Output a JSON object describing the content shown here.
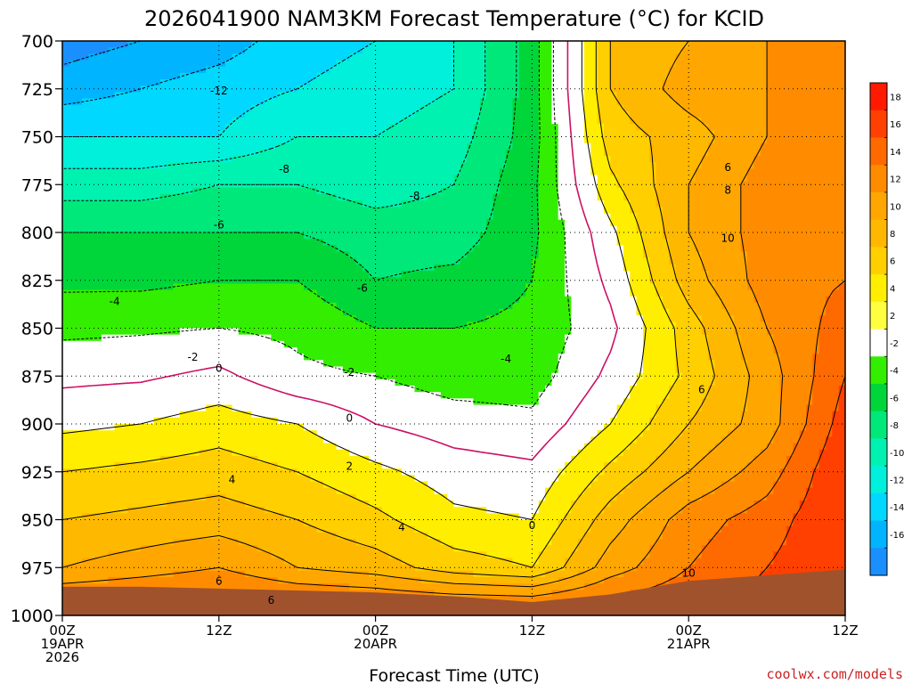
{
  "chart_data": {
    "type": "heatmap",
    "title": "2026041900 NAM3KM Forecast Temperature (°C) for KCID",
    "xlabel": "Forecast Time (UTC)",
    "ylabel": "",
    "x_hours": [
      0,
      6,
      12,
      18,
      24,
      30,
      36,
      42,
      48,
      54,
      60
    ],
    "x_ticks": [
      {
        "hour": 0,
        "lines": [
          "00Z",
          "19APR",
          "2026"
        ]
      },
      {
        "hour": 12,
        "lines": [
          "12Z"
        ]
      },
      {
        "hour": 24,
        "lines": [
          "00Z",
          "20APR"
        ]
      },
      {
        "hour": 36,
        "lines": [
          "12Z"
        ]
      },
      {
        "hour": 48,
        "lines": [
          "00Z",
          "21APR"
        ]
      },
      {
        "hour": 60,
        "lines": [
          "12Z"
        ]
      }
    ],
    "y_levels_hpa": [
      700,
      725,
      750,
      775,
      800,
      825,
      850,
      875,
      900,
      925,
      950,
      975,
      1000
    ],
    "y_tick_labels": [
      "700",
      "725",
      "750",
      "775",
      "800",
      "825",
      "850",
      "875",
      "900",
      "925",
      "950",
      "975",
      "1000"
    ],
    "ylim": [
      1000,
      700
    ],
    "xlim": [
      0,
      60
    ],
    "grid": true,
    "surface_pressure_hpa": [
      985,
      985,
      986,
      987,
      988,
      990,
      993,
      989,
      982,
      979,
      976
    ],
    "temperature_c": [
      [
        -17,
        -15,
        -12,
        -9,
        -6,
        -4.5,
        -2.5,
        -0.5,
        1.5,
        4,
        6,
        8,
        14
      ],
      [
        -16,
        -14,
        -12,
        -9,
        -6,
        -4.5,
        -2.3,
        -0.3,
        2,
        4.5,
        6.5,
        9,
        14
      ],
      [
        -15,
        -13,
        -12,
        -8,
        -6,
        -4,
        -2,
        0.5,
        3,
        5,
        7,
        10,
        14
      ],
      [
        -13,
        -12,
        -10,
        -8,
        -6,
        -4,
        -2.5,
        -1.5,
        2,
        4,
        6,
        8,
        14
      ],
      [
        -12,
        -11,
        -10,
        -9,
        -7,
        -6,
        -4,
        -2,
        0,
        2.5,
        4.5,
        7,
        14
      ],
      [
        -10,
        -10,
        -9,
        -8,
        -7,
        -5.5,
        -4,
        -3,
        -1,
        1,
        2.5,
        5,
        14
      ],
      [
        -5,
        -5,
        -5,
        -4.5,
        -4.5,
        -4,
        -3.5,
        -3,
        -1.5,
        0.5,
        2,
        4,
        14
      ],
      [
        6,
        6,
        5,
        3.5,
        1.5,
        0.5,
        -0.5,
        0.5,
        2,
        4.5,
        7,
        9,
        14
      ],
      [
        8,
        9,
        7,
        8,
        8,
        7,
        5,
        4.5,
        6,
        8,
        11,
        12,
        14
      ],
      [
        10,
        10,
        10,
        11,
        11,
        11,
        10,
        9,
        9,
        11,
        13,
        14,
        15
      ],
      [
        11,
        11,
        12,
        12,
        12,
        12,
        13,
        14,
        15,
        16,
        16,
        16,
        16
      ]
    ],
    "contour_levels": [
      -16,
      -14,
      -12,
      -10,
      -8,
      -6,
      -4,
      -2,
      0,
      2,
      4,
      6,
      8,
      10,
      12,
      14,
      16
    ],
    "contour_labels": [
      {
        "text": "-12",
        "hour": 12,
        "p": 726
      },
      {
        "text": "-8",
        "hour": 17,
        "p": 767
      },
      {
        "text": "-8",
        "hour": 27,
        "p": 781
      },
      {
        "text": "-6",
        "hour": 12,
        "p": 796
      },
      {
        "text": "-6",
        "hour": 23,
        "p": 829
      },
      {
        "text": "-4",
        "hour": 4,
        "p": 836
      },
      {
        "text": "-4",
        "hour": 34,
        "p": 866
      },
      {
        "text": "-2",
        "hour": 10,
        "p": 865
      },
      {
        "text": "-2",
        "hour": 22,
        "p": 873
      },
      {
        "text": "0",
        "hour": 12,
        "p": 871
      },
      {
        "text": "0",
        "hour": 22,
        "p": 897
      },
      {
        "text": "0",
        "hour": 36,
        "p": 953
      },
      {
        "text": "2",
        "hour": 22,
        "p": 922
      },
      {
        "text": "4",
        "hour": 13,
        "p": 929
      },
      {
        "text": "4",
        "hour": 26,
        "p": 954
      },
      {
        "text": "6",
        "hour": 12,
        "p": 982
      },
      {
        "text": "6",
        "hour": 16,
        "p": 992
      },
      {
        "text": "6",
        "hour": 49,
        "p": 882
      },
      {
        "text": "6",
        "hour": 51,
        "p": 766
      },
      {
        "text": "8",
        "hour": 51,
        "p": 778
      },
      {
        "text": "10",
        "hour": 51,
        "p": 803
      },
      {
        "text": "10",
        "hour": 48,
        "p": 978
      }
    ],
    "colorbar": {
      "ticks": [
        "18",
        "16",
        "14",
        "12",
        "10",
        "8",
        "6",
        "4",
        "2",
        "-2",
        "-4",
        "-6",
        "-8",
        "-10",
        "-12",
        "-14",
        "-16"
      ],
      "colors": [
        "#ff1a00",
        "#ff4000",
        "#ff6a00",
        "#ff8c00",
        "#ffa600",
        "#ffb800",
        "#ffcf00",
        "#ffee00",
        "#ffff40",
        "#ffffff",
        "#33ee00",
        "#00d63a",
        "#00e87a",
        "#00f2b0",
        "#00f0dc",
        "#00d8ff",
        "#00b4ff",
        "#1a90ff"
      ]
    },
    "colors": {
      "terrain": "#a0522d",
      "zero_line": "#cc1166",
      "positive_line": "#000000",
      "negative_line": "#000000"
    },
    "credit": "coolwx.com/models"
  }
}
